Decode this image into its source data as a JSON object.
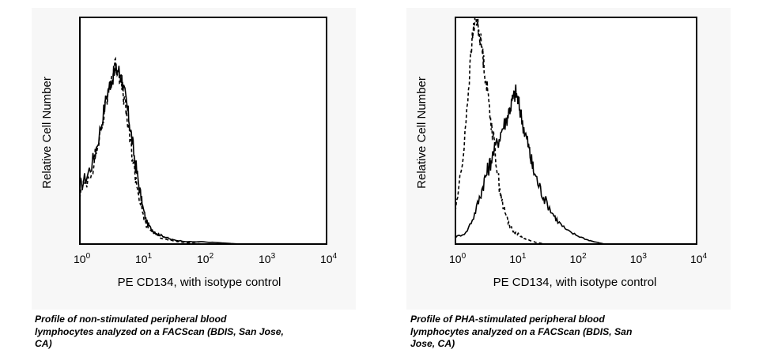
{
  "chart_data": [
    {
      "type": "line",
      "xlabel": "PE CD134, with isotype control",
      "ylabel": "Relative Cell Number",
      "x_scale": "log",
      "xlim": [
        1,
        10000
      ],
      "ylim": [
        0,
        100
      ],
      "x_ticks": [
        {
          "base": "10",
          "exp": "0"
        },
        {
          "base": "10",
          "exp": "1"
        },
        {
          "base": "10",
          "exp": "2"
        },
        {
          "base": "10",
          "exp": "3"
        },
        {
          "base": "10",
          "exp": "4"
        }
      ],
      "series": [
        {
          "style": "solid",
          "color": "#000000",
          "x": [
            1,
            1.3,
            1.7,
            2.2,
            2.7,
            3.2,
            3.7,
            4.2,
            4.8,
            5.5,
            6.2,
            7.0,
            8.0,
            9.2,
            10.5,
            12,
            14,
            17,
            20,
            25,
            30,
            40,
            60,
            100,
            200,
            400
          ],
          "y": [
            25,
            30,
            38,
            52,
            65,
            72,
            76,
            77,
            73,
            64,
            56,
            46,
            35,
            25,
            16,
            10,
            7,
            5,
            4,
            3,
            2,
            1.5,
            1,
            1,
            0.5,
            0
          ]
        },
        {
          "style": "dashed",
          "color": "#000000",
          "x": [
            1,
            1.3,
            1.7,
            2.2,
            2.7,
            3.2,
            3.7,
            4.2,
            4.8,
            5.5,
            6.2,
            7.0,
            8.0,
            9.2,
            10.5,
            12,
            14,
            17,
            20,
            25,
            30,
            40,
            60,
            100
          ],
          "y": [
            22,
            28,
            36,
            50,
            63,
            73,
            79,
            77,
            70,
            60,
            50,
            40,
            30,
            20,
            13,
            8,
            6,
            4,
            3,
            2,
            1.5,
            1,
            0.5,
            0
          ]
        }
      ]
    },
    {
      "type": "line",
      "xlabel": "PE CD134, with isotype control",
      "ylabel": "Relative Cell Number",
      "x_scale": "log",
      "xlim": [
        1,
        10000
      ],
      "ylim": [
        0,
        100
      ],
      "x_ticks": [
        {
          "base": "10",
          "exp": "0"
        },
        {
          "base": "10",
          "exp": "1"
        },
        {
          "base": "10",
          "exp": "2"
        },
        {
          "base": "10",
          "exp": "3"
        },
        {
          "base": "10",
          "exp": "4"
        }
      ],
      "series": [
        {
          "style": "solid",
          "color": "#000000",
          "x": [
            1,
            1.5,
            2,
            2.5,
            3,
            3.5,
            4,
            5,
            6,
            7,
            8,
            9,
            10,
            11,
            12,
            14,
            16,
            18,
            20,
            25,
            30,
            40,
            50,
            70,
            100,
            150,
            200,
            300
          ],
          "y": [
            3,
            5,
            12,
            20,
            28,
            33,
            38,
            45,
            51,
            55,
            60,
            64,
            67,
            63,
            58,
            50,
            44,
            37,
            32,
            25,
            20,
            14,
            10,
            6,
            4,
            2,
            1,
            0
          ]
        },
        {
          "style": "dashed",
          "color": "#000000",
          "x": [
            1,
            1.3,
            1.6,
            1.9,
            2.1,
            2.3,
            2.5,
            2.8,
            3.1,
            3.5,
            4,
            4.6,
            5.2,
            6,
            7,
            8,
            9,
            10,
            12,
            15,
            20,
            30
          ],
          "y": [
            15,
            35,
            65,
            90,
            100,
            98,
            93,
            85,
            75,
            65,
            52,
            40,
            28,
            18,
            12,
            8,
            6,
            5,
            3.5,
            2,
            1,
            0
          ]
        }
      ]
    }
  ],
  "captions": [
    "Profile of non-stimulated peripheral blood\nlymphocytes analyzed on a FACScan (BDIS, San Jose,\nCA)",
    "Profile of PHA-stimulated peripheral blood\nlymphocytes analyzed on a FACScan (BDIS, San\nJose, CA)"
  ]
}
